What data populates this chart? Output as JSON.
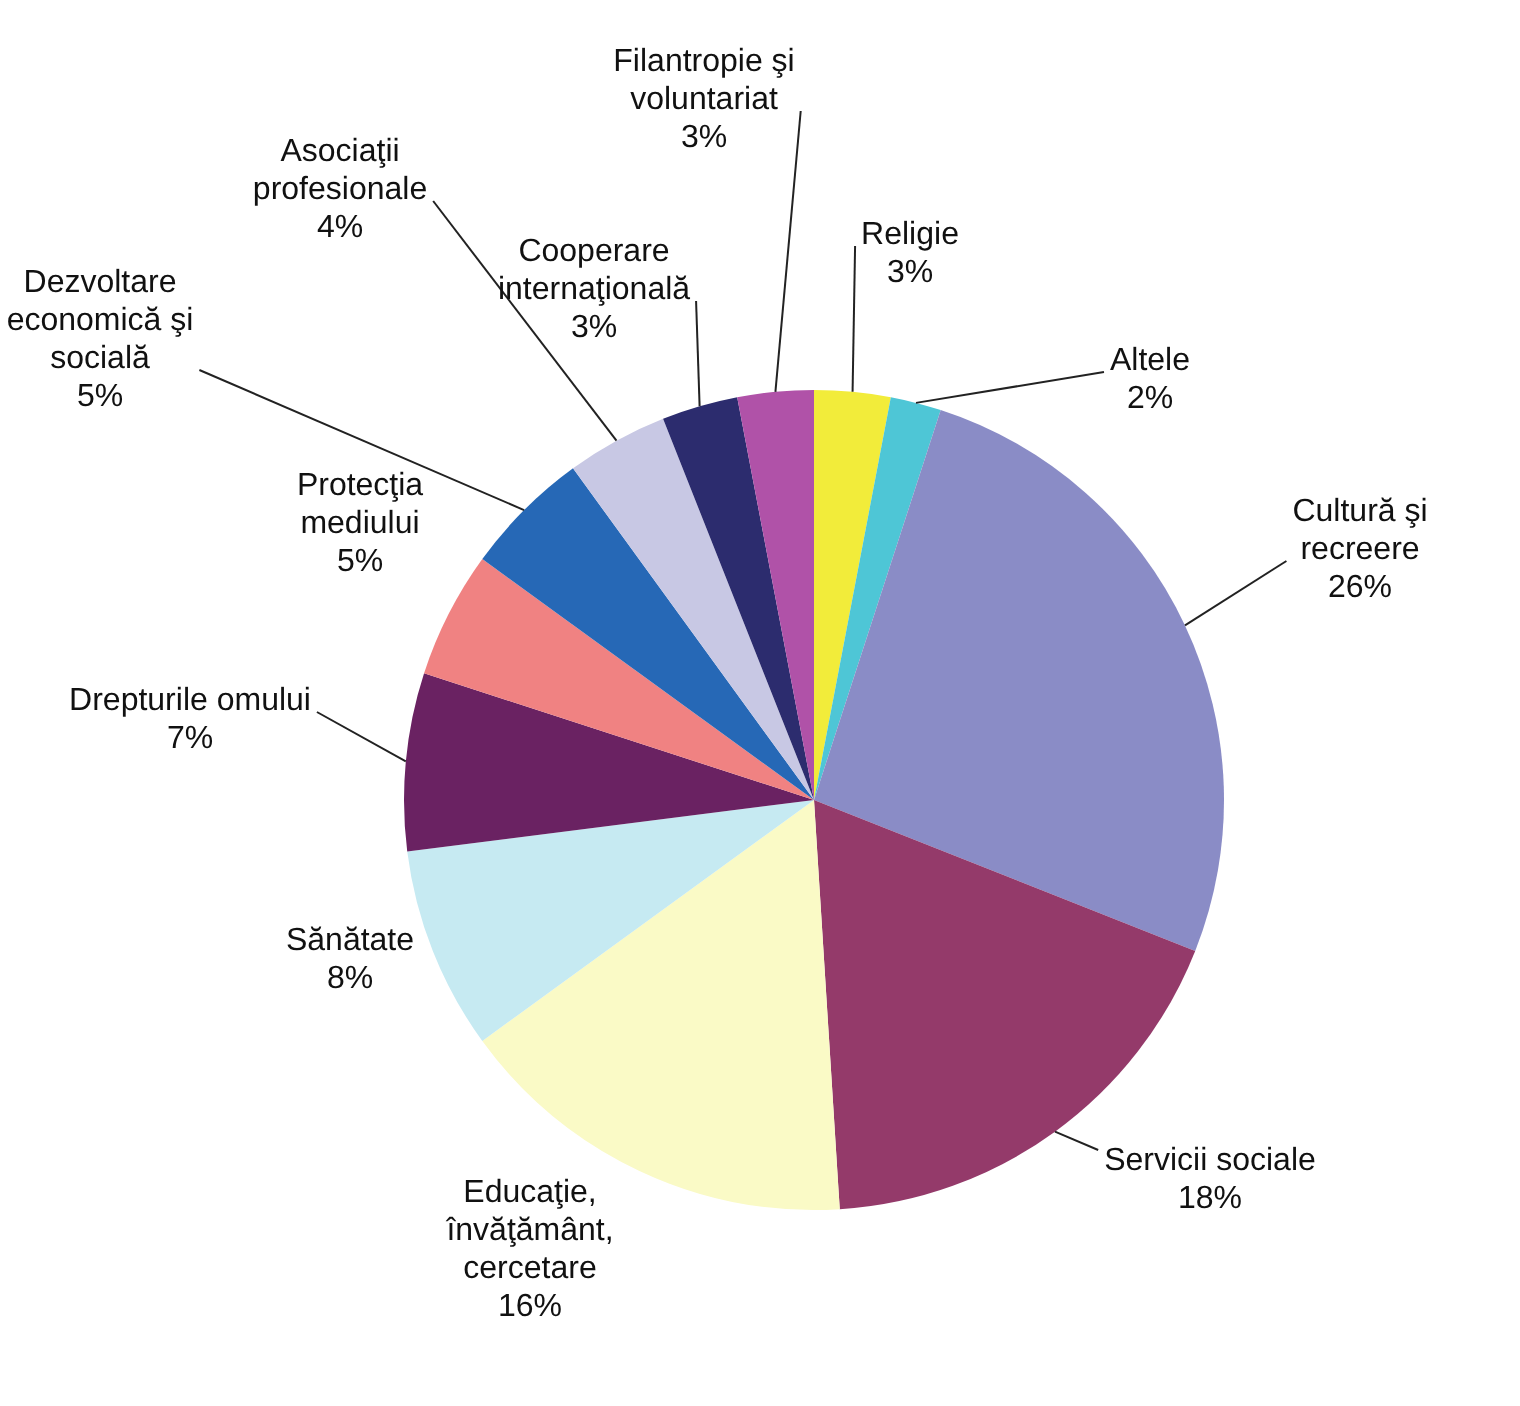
{
  "chart_data": {
    "type": "pie",
    "categories": [
      "Religie",
      "Altele",
      "Cultură şi recreere",
      "Servicii sociale",
      "Educaţie, învăţământ, cercetare",
      "Sănătate",
      "Drepturile omului",
      "Protecţia mediului",
      "Dezvoltare economică şi socială",
      "Asociaţii profesionale",
      "Cooperare internaţională",
      "Filantropie şi voluntariat"
    ],
    "values": [
      3,
      2,
      26,
      18,
      16,
      8,
      7,
      5,
      5,
      4,
      3,
      3
    ],
    "value_labels": [
      "3%",
      "2%",
      "26%",
      "18%",
      "16%",
      "8%",
      "7%",
      "5%",
      "5%",
      "4%",
      "3%",
      "3%"
    ],
    "colors": [
      "#f2ec3a",
      "#4ec6d6",
      "#8a8cc6",
      "#943a6a",
      "#fafac6",
      "#c6eaf2",
      "#6a2262",
      "#f08282",
      "#2668b6",
      "#c8c8e4",
      "#2c2c6e",
      "#b052a8"
    ]
  }
}
